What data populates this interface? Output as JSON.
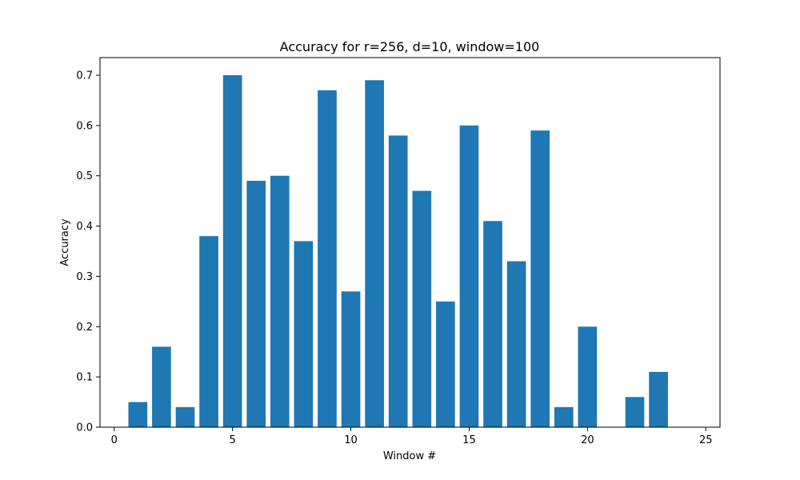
{
  "chart_data": {
    "type": "bar",
    "title": "Accuracy for r=256, d=10, window=100",
    "xlabel": "Window #",
    "ylabel": "Accuracy",
    "xlim": [
      -0.6,
      25.6
    ],
    "ylim": [
      0,
      0.735
    ],
    "xticks": [
      0,
      5,
      10,
      15,
      20,
      25
    ],
    "yticks": [
      0.0,
      0.1,
      0.2,
      0.3,
      0.4,
      0.5,
      0.6,
      0.7
    ],
    "bar_color": "#1f77b4",
    "bar_width": 0.8,
    "grid": false,
    "x": [
      1,
      2,
      3,
      4,
      5,
      6,
      7,
      8,
      9,
      10,
      11,
      12,
      13,
      14,
      15,
      16,
      17,
      18,
      19,
      20,
      21,
      22,
      23,
      24
    ],
    "values": [
      0.05,
      0.16,
      0.04,
      0.38,
      0.7,
      0.49,
      0.5,
      0.37,
      0.67,
      0.27,
      0.69,
      0.58,
      0.47,
      0.25,
      0.6,
      0.41,
      0.33,
      0.59,
      0.04,
      0.2,
      0.0,
      0.06,
      0.11,
      0.0
    ]
  }
}
